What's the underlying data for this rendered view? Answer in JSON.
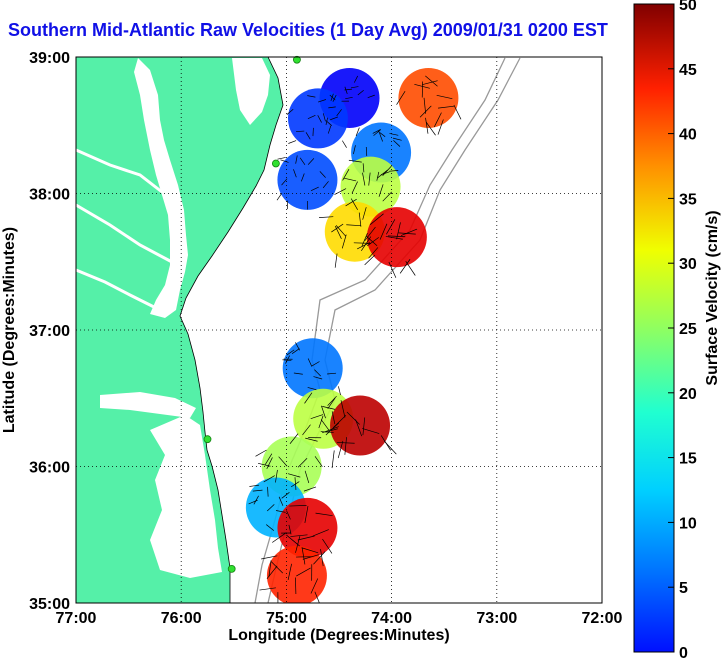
{
  "title": "Southern Mid-Atlantic Raw Velocities (1 Day Avg) 2009/01/31 0200 EST",
  "map": {
    "x_axis_label": "Longitude (Degrees:Minutes)",
    "y_axis_label": "Latitude (Degrees:Minutes)",
    "lon_range": [
      -77,
      -72
    ],
    "lat_range": [
      35,
      39
    ],
    "x_ticks": [
      {
        "value": -77,
        "label": "77:00"
      },
      {
        "value": -76,
        "label": "76:00"
      },
      {
        "value": -75,
        "label": "75:00"
      },
      {
        "value": -74,
        "label": "74:00"
      },
      {
        "value": -73,
        "label": "73:00"
      },
      {
        "value": -72,
        "label": "72:00"
      }
    ],
    "y_ticks": [
      {
        "value": 39,
        "label": "39:00"
      },
      {
        "value": 38,
        "label": "38:00"
      },
      {
        "value": 37,
        "label": "37:00"
      },
      {
        "value": 36,
        "label": "36:00"
      },
      {
        "value": 35,
        "label": "35:00"
      }
    ],
    "grid": true,
    "land_color": "#55f0a8",
    "water_color": "#ffffff",
    "radar_stations": [
      {
        "lon": -74.9,
        "lat": 38.98
      },
      {
        "lon": -75.1,
        "lat": 38.22
      },
      {
        "lon": -75.75,
        "lat": 36.2
      },
      {
        "lon": -75.52,
        "lat": 35.25
      }
    ],
    "station_color": "#30e030"
  },
  "colorbar": {
    "label": "Surface Velocity (cm/s)",
    "min": 0,
    "max": 50,
    "ticks": [
      0,
      5,
      10,
      15,
      20,
      25,
      30,
      35,
      40,
      45,
      50
    ],
    "colormap": "jet"
  },
  "chart_data": {
    "type": "heatmap",
    "title": "Southern Mid-Atlantic Raw Velocities (1 Day Avg) 2009/01/31 0200 EST",
    "xlabel": "Longitude (Degrees:Minutes)",
    "ylabel": "Latitude (Degrees:Minutes)",
    "xlim": [
      -77,
      -72
    ],
    "ylim": [
      35,
      39
    ],
    "value_label": "Surface Velocity (cm/s)",
    "value_range": [
      0,
      50
    ],
    "grid": true,
    "regions": [
      {
        "lon": -74.4,
        "lat": 38.7,
        "speed": 6
      },
      {
        "lon": -74.7,
        "lat": 38.55,
        "speed": 9
      },
      {
        "lon": -74.1,
        "lat": 38.3,
        "speed": 12
      },
      {
        "lon": -74.8,
        "lat": 38.1,
        "speed": 10
      },
      {
        "lon": -73.65,
        "lat": 38.7,
        "speed": 40
      },
      {
        "lon": -74.2,
        "lat": 38.05,
        "speed": 28
      },
      {
        "lon": -74.35,
        "lat": 37.72,
        "speed": 33
      },
      {
        "lon": -73.95,
        "lat": 37.68,
        "speed": 45
      },
      {
        "lon": -74.75,
        "lat": 36.72,
        "speed": 12
      },
      {
        "lon": -74.65,
        "lat": 36.35,
        "speed": 28
      },
      {
        "lon": -74.3,
        "lat": 36.3,
        "speed": 47
      },
      {
        "lon": -74.95,
        "lat": 36.0,
        "speed": 27
      },
      {
        "lon": -75.1,
        "lat": 35.7,
        "speed": 15
      },
      {
        "lon": -74.8,
        "lat": 35.55,
        "speed": 45
      },
      {
        "lon": -74.9,
        "lat": 35.2,
        "speed": 42
      }
    ]
  }
}
